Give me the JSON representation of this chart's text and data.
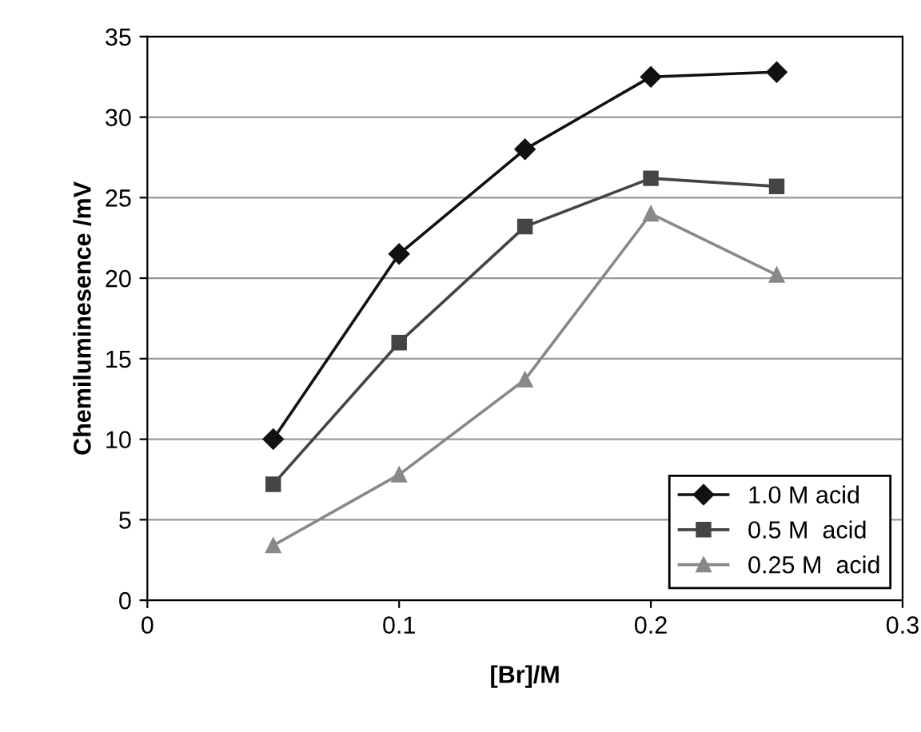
{
  "chart_data": {
    "type": "line",
    "xlabel": "[Br]/M",
    "ylabel": "Chemiluminesence /mV",
    "x": [
      0.05,
      0.1,
      0.15,
      0.2,
      0.25
    ],
    "series": [
      {
        "name": "1.0 M acid",
        "color": "#111111",
        "marker": "diamond",
        "values": [
          10,
          21.5,
          28,
          32.5,
          32.8
        ]
      },
      {
        "name": "0.5 M  acid",
        "color": "#444444",
        "marker": "square",
        "values": [
          7.2,
          16,
          23.2,
          26.2,
          25.7
        ]
      },
      {
        "name": "0.25 M  acid",
        "color": "#888888",
        "marker": "triangle",
        "values": [
          3.4,
          7.8,
          13.7,
          24,
          20.2
        ]
      }
    ],
    "xlim": [
      0,
      0.3
    ],
    "xticks": [
      0,
      0.1,
      0.2,
      0.3
    ],
    "ylim": [
      0,
      35
    ],
    "yticks": [
      0,
      5,
      10,
      15,
      20,
      25,
      30,
      35
    ],
    "grid": "y",
    "legend": "bottom right",
    "line_style": "solid"
  }
}
